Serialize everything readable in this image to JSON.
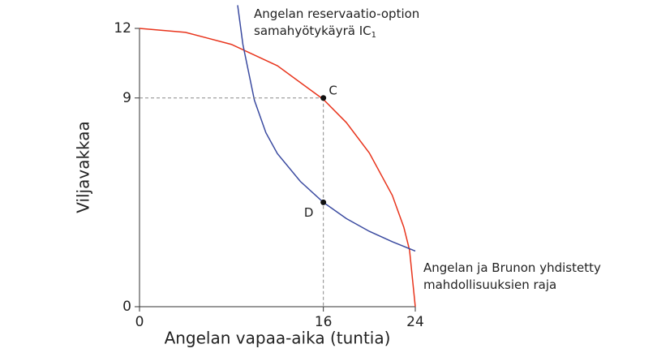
{
  "chart_data": {
    "type": "line",
    "x_label": "Angelan vapaa-aika (tuntia)",
    "y_label": "Viljavakkaa",
    "xlim": [
      0,
      24
    ],
    "ylim": [
      0,
      12
    ],
    "xticks": [
      0,
      16,
      24
    ],
    "yticks": [
      0,
      9,
      12
    ],
    "series": [
      {
        "color": "#e8341c",
        "x": [
          0,
          4,
          8,
          12,
          16,
          18,
          20,
          22,
          23,
          23.5,
          24
        ],
        "values": [
          12,
          11.83,
          11.31,
          10.39,
          8.94,
          7.94,
          6.63,
          4.8,
          3.43,
          2.44,
          0
        ]
      },
      {
        "color": "#3a4aa0",
        "x": [
          8.54,
          9,
          10,
          11,
          12,
          14,
          16,
          18,
          20,
          22,
          24
        ],
        "values": [
          13.0,
          11.3,
          8.9,
          7.5,
          6.6,
          5.4,
          4.5,
          3.8,
          3.25,
          2.8,
          2.4
        ]
      }
    ],
    "points": [
      {
        "label": "C",
        "x": 16,
        "y": 9
      },
      {
        "label": "D",
        "x": 16,
        "y": 4.5
      }
    ],
    "annotations": [
      {
        "lines": [
          "Angelan reservaatio-option",
          "samahyötykäyrä IC"
        ],
        "sub": "1"
      },
      {
        "lines": [
          "Angelan ja Brunon yhdistetty",
          "mahdollisuuksien raja"
        ]
      }
    ]
  }
}
